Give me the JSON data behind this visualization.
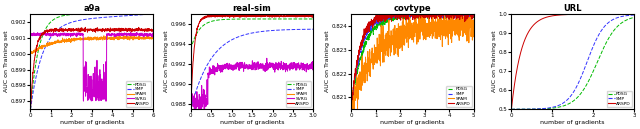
{
  "panels": [
    {
      "title": "a9a",
      "ylabel": "AUC on Training set",
      "xlabel": "number of gradients",
      "xlim": [
        0,
        600000
      ],
      "ylim": [
        0.8965,
        0.9025
      ],
      "xtick_exp": 5,
      "has_svrg": true,
      "has_spam": true
    },
    {
      "title": "real-sim",
      "ylabel": "AUC on Training set",
      "xlabel": "number of gradients",
      "xlim": [
        0,
        300000
      ],
      "ylim": [
        0.9875,
        0.997
      ],
      "xtick_exp": 5,
      "has_svrg": true,
      "has_spam": false
    },
    {
      "title": "covtype",
      "ylabel": "AUC on Training set",
      "xlabel": "number of gradients",
      "xlim": [
        0,
        5000000
      ],
      "ylim": [
        0.8205,
        0.8245
      ],
      "xtick_exp": 6,
      "has_svrg": false,
      "has_spam": true
    },
    {
      "title": "URL",
      "ylabel": "AUC on Training set",
      "xlabel": "number of gradients",
      "xlim": [
        0,
        3000000
      ],
      "ylim": [
        0.5,
        1.0
      ],
      "xtick_exp": 6,
      "has_svrg": false,
      "has_spam": false
    }
  ],
  "colors": {
    "PDSG": "#00bb00",
    "SMP": "#3333ff",
    "SPAM": "#ff8800",
    "SVRG": "#cc00cc",
    "ARSPD": "#cc0000"
  }
}
